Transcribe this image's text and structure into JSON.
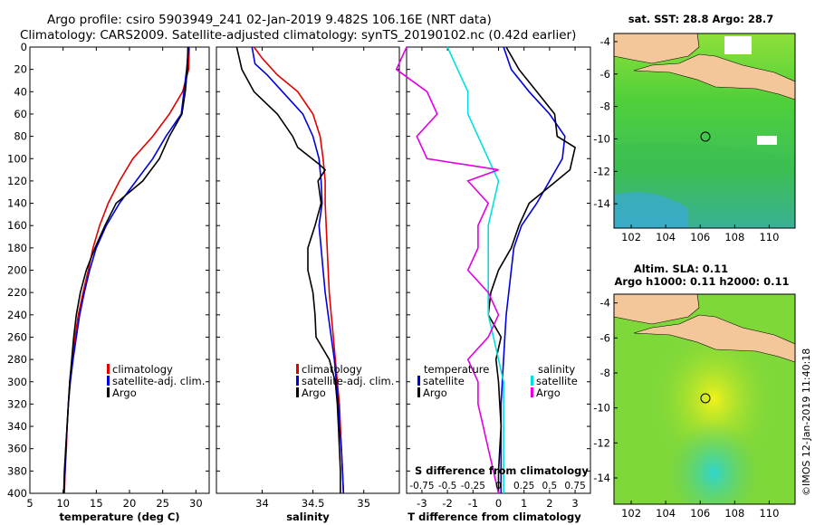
{
  "header": {
    "title_line1": "Argo profile: csiro 5903949_241 02-Jan-2019 9.482S 106.16E (NRT data)",
    "title_line2": "Climatology: CARS2009. Satellite-adjusted climatology: synTS_20190102.nc (0.42d earlier)"
  },
  "colors": {
    "climatology": "#e00000",
    "satellite": "#0000dd",
    "argo": "#000000",
    "sat_salinity": "#00e0e0",
    "clim_salinity": "#e000e0"
  },
  "chart_data": [
    {
      "id": "temperature",
      "type": "line",
      "xlabel": "temperature (deg C)",
      "ylabel": "",
      "xlim": [
        5,
        32
      ],
      "ylim": [
        400,
        0
      ],
      "xticks": [
        "5",
        "10",
        "15",
        "20",
        "25",
        "30"
      ],
      "yticks": [
        "0",
        "20",
        "40",
        "60",
        "80",
        "100",
        "120",
        "140",
        "160",
        "180",
        "200",
        "220",
        "240",
        "260",
        "280",
        "300",
        "320",
        "340",
        "360",
        "380",
        "400"
      ],
      "legend": [
        "climatology",
        "satellite-adj. clim.",
        "Argo"
      ],
      "series": [
        {
          "name": "climatology",
          "color": "#e00000",
          "points": [
            [
              29.0,
              0
            ],
            [
              28.9,
              20
            ],
            [
              28.0,
              40
            ],
            [
              26.0,
              60
            ],
            [
              23.5,
              80
            ],
            [
              20.5,
              100
            ],
            [
              18.5,
              120
            ],
            [
              16.8,
              140
            ],
            [
              15.5,
              160
            ],
            [
              14.5,
              180
            ],
            [
              13.8,
              200
            ],
            [
              13.0,
              220
            ],
            [
              12.3,
              240
            ],
            [
              11.8,
              260
            ],
            [
              11.4,
              280
            ],
            [
              11.0,
              300
            ],
            [
              10.8,
              320
            ],
            [
              10.6,
              340
            ],
            [
              10.5,
              360
            ],
            [
              10.3,
              380
            ],
            [
              10.2,
              400
            ]
          ]
        },
        {
          "name": "satellite-adj. clim.",
          "color": "#0000dd",
          "points": [
            [
              28.9,
              0
            ],
            [
              28.6,
              20
            ],
            [
              28.2,
              40
            ],
            [
              27.8,
              60
            ],
            [
              25.5,
              80
            ],
            [
              23.5,
              100
            ],
            [
              21.0,
              120
            ],
            [
              18.5,
              140
            ],
            [
              16.5,
              160
            ],
            [
              15.0,
              180
            ],
            [
              14.0,
              200
            ],
            [
              13.2,
              220
            ],
            [
              12.5,
              240
            ],
            [
              12.0,
              260
            ],
            [
              11.5,
              280
            ],
            [
              11.1,
              300
            ],
            [
              10.8,
              320
            ],
            [
              10.6,
              340
            ],
            [
              10.4,
              360
            ],
            [
              10.3,
              380
            ],
            [
              10.1,
              400
            ]
          ]
        },
        {
          "name": "Argo",
          "color": "#000000",
          "points": [
            [
              28.8,
              0
            ],
            [
              28.7,
              20
            ],
            [
              28.4,
              40
            ],
            [
              27.9,
              60
            ],
            [
              26.0,
              80
            ],
            [
              24.5,
              100
            ],
            [
              22.0,
              120
            ],
            [
              18.0,
              140
            ],
            [
              16.3,
              160
            ],
            [
              14.8,
              180
            ],
            [
              13.5,
              200
            ],
            [
              12.6,
              220
            ],
            [
              12.0,
              240
            ],
            [
              11.6,
              260
            ],
            [
              11.3,
              280
            ],
            [
              11.0,
              300
            ],
            [
              10.8,
              320
            ],
            [
              10.6,
              340
            ],
            [
              10.4,
              360
            ],
            [
              10.2,
              380
            ],
            [
              10.1,
              400
            ]
          ]
        }
      ]
    },
    {
      "id": "salinity",
      "type": "line",
      "xlabel": "salinity",
      "xlim": [
        33.55,
        35.35
      ],
      "ylim": [
        400,
        0
      ],
      "xticks": [
        "34",
        "34.5",
        "35"
      ],
      "legend": [
        "climatology",
        "satellite-adj. clim.",
        "Argo"
      ],
      "series": [
        {
          "name": "climatology",
          "color": "#e00000",
          "points": [
            [
              33.92,
              0
            ],
            [
              34.0,
              10
            ],
            [
              34.15,
              25
            ],
            [
              34.35,
              40
            ],
            [
              34.5,
              60
            ],
            [
              34.57,
              80
            ],
            [
              34.6,
              100
            ],
            [
              34.62,
              120
            ],
            [
              34.62,
              140
            ],
            [
              34.63,
              160
            ],
            [
              34.64,
              180
            ],
            [
              34.65,
              200
            ],
            [
              34.66,
              220
            ],
            [
              34.68,
              240
            ],
            [
              34.7,
              260
            ],
            [
              34.72,
              280
            ],
            [
              34.74,
              300
            ],
            [
              34.76,
              320
            ],
            [
              34.77,
              340
            ],
            [
              34.78,
              360
            ],
            [
              34.79,
              380
            ],
            [
              34.8,
              400
            ]
          ]
        },
        {
          "name": "satellite-adj. clim.",
          "color": "#0000dd",
          "points": [
            [
              33.9,
              0
            ],
            [
              33.93,
              15
            ],
            [
              34.05,
              25
            ],
            [
              34.2,
              40
            ],
            [
              34.4,
              60
            ],
            [
              34.5,
              80
            ],
            [
              34.56,
              100
            ],
            [
              34.58,
              120
            ],
            [
              34.59,
              140
            ],
            [
              34.56,
              160
            ],
            [
              34.58,
              180
            ],
            [
              34.6,
              200
            ],
            [
              34.62,
              220
            ],
            [
              34.65,
              240
            ],
            [
              34.68,
              260
            ],
            [
              34.71,
              280
            ],
            [
              34.73,
              300
            ],
            [
              34.75,
              320
            ],
            [
              34.76,
              340
            ],
            [
              34.78,
              360
            ],
            [
              34.79,
              380
            ],
            [
              34.8,
              400
            ]
          ]
        },
        {
          "name": "Argo",
          "color": "#000000",
          "points": [
            [
              33.75,
              0
            ],
            [
              33.8,
              20
            ],
            [
              33.92,
              40
            ],
            [
              34.15,
              60
            ],
            [
              34.3,
              80
            ],
            [
              34.35,
              90
            ],
            [
              34.56,
              105
            ],
            [
              34.62,
              110
            ],
            [
              34.55,
              120
            ],
            [
              34.58,
              140
            ],
            [
              34.52,
              160
            ],
            [
              34.45,
              180
            ],
            [
              34.45,
              200
            ],
            [
              34.5,
              220
            ],
            [
              34.52,
              240
            ],
            [
              34.53,
              260
            ],
            [
              34.66,
              280
            ],
            [
              34.72,
              300
            ],
            [
              34.74,
              320
            ],
            [
              34.75,
              340
            ],
            [
              34.76,
              360
            ],
            [
              34.77,
              380
            ],
            [
              34.77,
              400
            ]
          ]
        }
      ]
    },
    {
      "id": "difference",
      "type": "line",
      "xlabel": "T difference from climatology",
      "xlim": [
        -3.6,
        3.6
      ],
      "ylim": [
        400,
        0
      ],
      "xticks": [
        "-3",
        "-2",
        "-1",
        "0",
        "1",
        "2",
        "3"
      ],
      "s_axis_label": "S difference from climatology",
      "s_xticks": [
        "-0.75",
        "-0.5",
        "-0.25",
        "0",
        "0.25",
        "0.5",
        "0.75"
      ],
      "legend_temperature": {
        "heading": "temperature",
        "items": [
          "satellite",
          "Argo"
        ]
      },
      "legend_salinity": {
        "heading": "salinity",
        "items": [
          "satellite",
          "Argo"
        ]
      },
      "series": [
        {
          "name": "T satellite",
          "color": "#0000dd",
          "points": [
            [
              0.2,
              0
            ],
            [
              0.5,
              20
            ],
            [
              1.2,
              40
            ],
            [
              2.0,
              60
            ],
            [
              2.6,
              80
            ],
            [
              2.5,
              100
            ],
            [
              2.0,
              120
            ],
            [
              1.5,
              140
            ],
            [
              0.9,
              160
            ],
            [
              0.6,
              180
            ],
            [
              0.5,
              200
            ],
            [
              0.4,
              220
            ],
            [
              0.3,
              240
            ],
            [
              0.25,
              260
            ],
            [
              0.2,
              280
            ],
            [
              0.15,
              300
            ],
            [
              0.1,
              320
            ],
            [
              0.1,
              340
            ],
            [
              0.1,
              360
            ],
            [
              0.1,
              380
            ],
            [
              0.1,
              400
            ]
          ]
        },
        {
          "name": "T Argo",
          "color": "#000000",
          "points": [
            [
              0.3,
              0
            ],
            [
              0.8,
              20
            ],
            [
              1.5,
              40
            ],
            [
              2.2,
              60
            ],
            [
              2.3,
              80
            ],
            [
              3.0,
              90
            ],
            [
              2.8,
              110
            ],
            [
              2.0,
              125
            ],
            [
              1.2,
              140
            ],
            [
              0.8,
              160
            ],
            [
              0.5,
              180
            ],
            [
              0.0,
              200
            ],
            [
              -0.3,
              220
            ],
            [
              -0.4,
              240
            ],
            [
              0.1,
              260
            ],
            [
              -0.1,
              280
            ],
            [
              0.0,
              300
            ],
            [
              0.05,
              320
            ],
            [
              0.1,
              340
            ],
            [
              0.05,
              360
            ],
            [
              0.0,
              380
            ],
            [
              0.0,
              400
            ]
          ]
        },
        {
          "name": "S satellite",
          "color": "#00e0e0",
          "points": [
            [
              -0.5,
              0
            ],
            [
              -0.4,
              20
            ],
            [
              -0.3,
              40
            ],
            [
              -0.3,
              60
            ],
            [
              -0.2,
              80
            ],
            [
              -0.1,
              100
            ],
            [
              0.0,
              120
            ],
            [
              -0.05,
              140
            ],
            [
              -0.1,
              160
            ],
            [
              -0.1,
              180
            ],
            [
              -0.1,
              200
            ],
            [
              -0.1,
              220
            ],
            [
              -0.1,
              240
            ],
            [
              -0.05,
              260
            ],
            [
              0.0,
              280
            ],
            [
              0.05,
              300
            ],
            [
              0.05,
              320
            ],
            [
              0.05,
              340
            ],
            [
              0.05,
              360
            ],
            [
              0.05,
              380
            ],
            [
              0.05,
              400
            ]
          ]
        },
        {
          "name": "S Argo",
          "color": "#e000e0",
          "points": [
            [
              -0.9,
              0
            ],
            [
              -1.0,
              20
            ],
            [
              -0.7,
              40
            ],
            [
              -0.6,
              60
            ],
            [
              -0.8,
              80
            ],
            [
              -0.7,
              100
            ],
            [
              0.0,
              110
            ],
            [
              -0.3,
              120
            ],
            [
              -0.1,
              140
            ],
            [
              -0.2,
              160
            ],
            [
              -0.2,
              180
            ],
            [
              -0.3,
              200
            ],
            [
              -0.1,
              220
            ],
            [
              0.0,
              240
            ],
            [
              -0.1,
              260
            ],
            [
              -0.3,
              280
            ],
            [
              -0.2,
              300
            ],
            [
              -0.2,
              320
            ],
            [
              -0.15,
              340
            ],
            [
              -0.1,
              360
            ],
            [
              -0.05,
              380
            ],
            [
              0.0,
              400
            ]
          ]
        }
      ]
    },
    {
      "id": "sst_map",
      "type": "heatmap",
      "title": "sat. SST: 28.8 Argo: 28.7",
      "xticks": [
        "102",
        "104",
        "106",
        "108",
        "110"
      ],
      "yticks": [
        "-4",
        "-6",
        "-8",
        "-10",
        "-12",
        "-14"
      ],
      "xlim": [
        101,
        111.5
      ],
      "ylim": [
        -15.5,
        -3.5
      ],
      "argo_position": [
        106.16,
        -9.48
      ]
    },
    {
      "id": "sla_map",
      "type": "heatmap",
      "title": "Altim. SLA: 0.11",
      "subtitle": "Argo h1000: 0.11 h2000: 0.11",
      "xticks": [
        "102",
        "104",
        "106",
        "108",
        "110"
      ],
      "yticks": [
        "-4",
        "-6",
        "-8",
        "-10",
        "-12",
        "-14"
      ],
      "xlim": [
        101,
        111.5
      ],
      "ylim": [
        -15.5,
        -3.5
      ],
      "argo_position": [
        106.16,
        -9.48
      ]
    }
  ],
  "footer": {
    "imos_stamp": "©IMOS 12-Jan-2019 11:40:18"
  }
}
